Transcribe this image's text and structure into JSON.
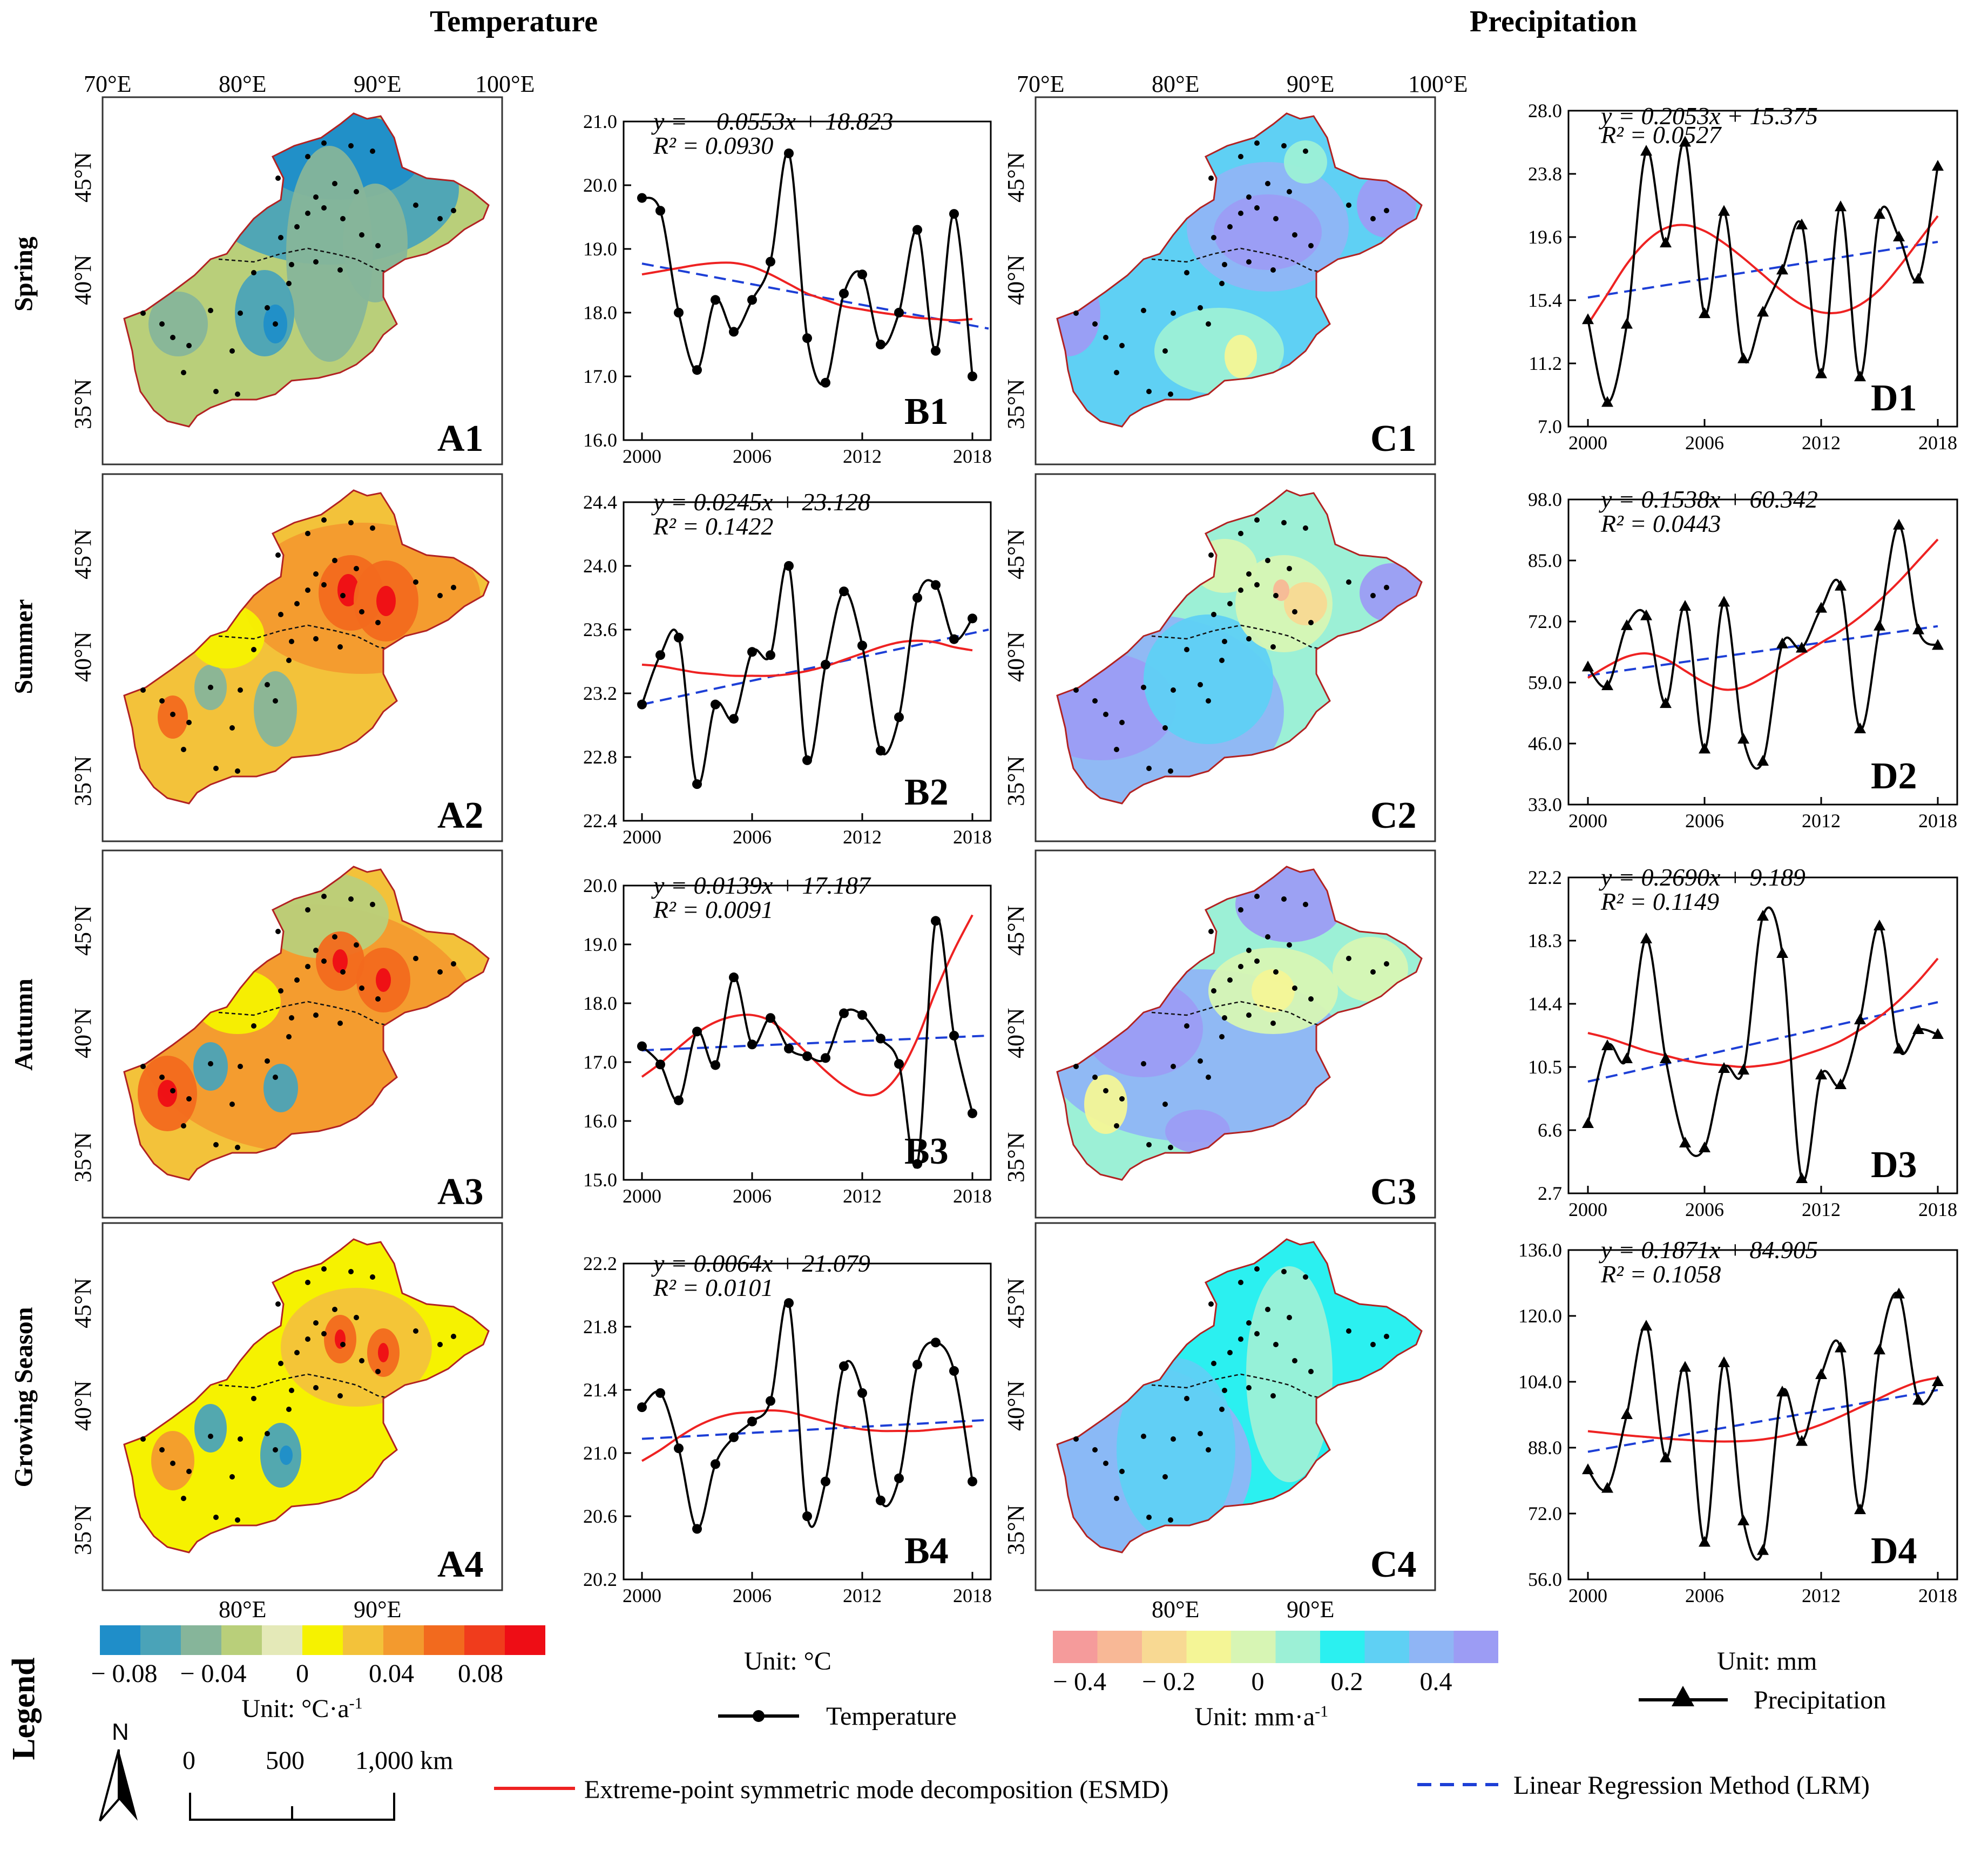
{
  "headings": {
    "temperature": "Temperature",
    "precipitation": "Precipitation",
    "legend": "Legend"
  },
  "rows": [
    "Spring",
    "Summer",
    "Autumn",
    "Growing Season"
  ],
  "map_axes": {
    "top_lon_labels": [
      "70°E",
      "80°E",
      "90°E",
      "100°E"
    ],
    "lat_labels": [
      "45°N",
      "40°N",
      "35°N"
    ],
    "bottom_lon_labels": [
      "80°E",
      "90°E"
    ]
  },
  "map_labels": {
    "temperature": [
      "A1",
      "A2",
      "A3",
      "A4"
    ],
    "precipitation": [
      "C1",
      "C2",
      "C3",
      "C4"
    ]
  },
  "colors": {
    "temp_scale": [
      "#1f8ec9",
      "#4aa3b8",
      "#86b59a",
      "#b9cf7a",
      "#e4e9b8",
      "#f6f200",
      "#f3c23a",
      "#f39a2e",
      "#f26a1e",
      "#f03c1c",
      "#ee0d15"
    ],
    "precip_scale": [
      "#f59b9b",
      "#f8b896",
      "#f8d993",
      "#f4f596",
      "#d7f5b4",
      "#9cf0d6",
      "#2bf0f0",
      "#5fd0f4",
      "#8fb5f5",
      "#9c9cf4"
    ],
    "temp_line": "#000000",
    "esmd": "#ee2222",
    "lrm": "#1d3fd6",
    "border": "#b22222"
  },
  "legend": {
    "temp_scale_labels": [
      "− 0.08",
      "− 0.04",
      "0",
      "0.04",
      "0.08"
    ],
    "temp_scale_unit": "Unit: °C·a",
    "temp_scale_unit_sup": "-1",
    "precip_scale_labels": [
      "− 0.4",
      "− 0.2",
      "0",
      "0.2",
      "0.4"
    ],
    "precip_scale_unit": "Unit: mm·a",
    "precip_scale_unit_sup": "-1",
    "temp_chart_unit": "Unit: °C",
    "precip_chart_unit": "Unit: mm",
    "temperature_series": "Temperature",
    "precipitation_series": "Precipitation",
    "esmd": "Extreme-point symmetric mode decomposition (ESMD)",
    "lrm": "Linear Regression Method (LRM)",
    "north": "N",
    "scale_bar": [
      "0",
      "500",
      "1,000 km"
    ]
  },
  "chart_data": [
    {
      "id": "B1",
      "type": "line",
      "title": "Spring temperature",
      "equation": "y = − 0.0553x + 18.823",
      "r2": "R² = 0.0930",
      "x": [
        2000,
        2001,
        2002,
        2003,
        2004,
        2005,
        2006,
        2007,
        2008,
        2009,
        2010,
        2011,
        2012,
        2013,
        2014,
        2015,
        2016,
        2017,
        2018
      ],
      "values": [
        19.8,
        19.6,
        18.0,
        17.1,
        18.2,
        17.7,
        18.2,
        18.8,
        20.5,
        17.6,
        16.9,
        18.3,
        18.6,
        17.5,
        18.0,
        19.3,
        17.4,
        19.55,
        17.0
      ],
      "ylim": [
        16.0,
        21.0
      ],
      "yticks": [
        "16.0",
        "17.0",
        "18.0",
        "19.0",
        "20.0",
        "21.0"
      ],
      "xticks": [
        "2000",
        "2006",
        "2012",
        "2018"
      ],
      "esmd": [
        18.6,
        18.65,
        18.7,
        18.75,
        18.78,
        18.78,
        18.72,
        18.6,
        18.45,
        18.3,
        18.2,
        18.1,
        18.05,
        18.0,
        17.96,
        17.92,
        17.9,
        17.88,
        17.9
      ],
      "lrm": [
        18.77,
        17.75
      ],
      "marker": "circle"
    },
    {
      "id": "B2",
      "type": "line",
      "title": "Summer temperature",
      "equation": "y = 0.0245x + 23.128",
      "r2": "R² = 0.1422",
      "x": [
        2000,
        2001,
        2002,
        2003,
        2004,
        2005,
        2006,
        2007,
        2008,
        2009,
        2010,
        2011,
        2012,
        2013,
        2014,
        2015,
        2016,
        2017,
        2018
      ],
      "values": [
        23.13,
        23.44,
        23.55,
        22.63,
        23.13,
        23.04,
        23.46,
        23.44,
        24.0,
        22.78,
        23.38,
        23.84,
        23.5,
        22.84,
        23.05,
        23.8,
        23.88,
        23.54,
        23.67
      ],
      "ylim": [
        22.4,
        24.4
      ],
      "yticks": [
        "22.4",
        "22.8",
        "23.2",
        "23.6",
        "24.0",
        "24.4"
      ],
      "xticks": [
        "2000",
        "2006",
        "2012",
        "2018"
      ],
      "esmd": [
        23.38,
        23.37,
        23.35,
        23.33,
        23.32,
        23.31,
        23.31,
        23.31,
        23.32,
        23.34,
        23.37,
        23.41,
        23.45,
        23.49,
        23.52,
        23.53,
        23.52,
        23.49,
        23.47
      ],
      "lrm": [
        23.13,
        23.6
      ],
      "marker": "circle"
    },
    {
      "id": "B3",
      "type": "line",
      "title": "Autumn temperature",
      "equation": "y = 0.0139x + 17.187",
      "r2": "R² = 0.0091",
      "x": [
        2000,
        2001,
        2002,
        2003,
        2004,
        2005,
        2006,
        2007,
        2008,
        2009,
        2010,
        2011,
        2012,
        2013,
        2014,
        2015,
        2016,
        2017,
        2018
      ],
      "values": [
        17.27,
        16.96,
        16.35,
        17.52,
        16.95,
        18.44,
        17.3,
        17.75,
        17.23,
        17.1,
        17.07,
        17.83,
        17.8,
        17.4,
        16.97,
        15.27,
        19.4,
        17.45,
        16.13
      ],
      "ylim": [
        15.0,
        20.0
      ],
      "yticks": [
        "15.0",
        "16.0",
        "17.0",
        "18.0",
        "19.0",
        "20.0"
      ],
      "xticks": [
        "2000",
        "2006",
        "2012",
        "2018"
      ],
      "esmd": [
        16.75,
        16.98,
        17.25,
        17.5,
        17.68,
        17.78,
        17.8,
        17.7,
        17.45,
        17.15,
        16.85,
        16.6,
        16.45,
        16.48,
        16.8,
        17.4,
        18.2,
        18.9,
        19.5
      ],
      "lrm": [
        17.2,
        17.45
      ],
      "marker": "circle"
    },
    {
      "id": "B4",
      "type": "line",
      "title": "Growing season temperature",
      "equation": "y = 0.0064x + 21.079",
      "r2": "R² = 0.0101",
      "x": [
        2000,
        2001,
        2002,
        2003,
        2004,
        2005,
        2006,
        2007,
        2008,
        2009,
        2010,
        2011,
        2012,
        2013,
        2014,
        2015,
        2016,
        2017,
        2018
      ],
      "values": [
        21.29,
        21.38,
        21.03,
        20.52,
        20.93,
        21.1,
        21.2,
        21.33,
        21.95,
        20.6,
        20.82,
        21.55,
        21.38,
        20.7,
        20.84,
        21.56,
        21.7,
        21.52,
        20.82
      ],
      "ylim": [
        20.2,
        22.2
      ],
      "yticks": [
        "20.2",
        "20.6",
        "21.0",
        "21.4",
        "21.8",
        "22.2"
      ],
      "xticks": [
        "2000",
        "2006",
        "2012",
        "2018"
      ],
      "esmd": [
        20.95,
        21.02,
        21.1,
        21.17,
        21.22,
        21.25,
        21.26,
        21.27,
        21.26,
        21.23,
        21.2,
        21.17,
        21.15,
        21.14,
        21.14,
        21.14,
        21.15,
        21.16,
        21.17
      ],
      "lrm": [
        21.09,
        21.21
      ],
      "marker": "circle"
    },
    {
      "id": "D1",
      "type": "line",
      "title": "Spring precipitation",
      "equation": "y = 0.2053x + 15.375",
      "r2": "R² = 0.0527",
      "x": [
        2000,
        2001,
        2002,
        2003,
        2004,
        2005,
        2006,
        2007,
        2008,
        2009,
        2010,
        2011,
        2012,
        2013,
        2014,
        2015,
        2016,
        2017,
        2018
      ],
      "values": [
        14.1,
        8.6,
        13.8,
        25.3,
        19.2,
        25.9,
        14.5,
        21.3,
        11.5,
        14.6,
        17.4,
        20.4,
        10.5,
        21.6,
        10.3,
        21.1,
        19.6,
        16.8,
        24.3
      ],
      "ylim": [
        7.0,
        28.0
      ],
      "yticks": [
        "7.0",
        "11.2",
        "15.4",
        "19.6",
        "23.8",
        "28.0"
      ],
      "xticks": [
        "2000",
        "2006",
        "2012",
        "2018"
      ],
      "esmd": [
        13.8,
        15.8,
        17.8,
        19.3,
        20.2,
        20.4,
        20.0,
        19.2,
        18.2,
        17.1,
        16.0,
        15.1,
        14.6,
        14.6,
        15.1,
        16.1,
        17.6,
        19.3,
        21.0
      ],
      "lrm": [
        15.58,
        19.28
      ],
      "marker": "triangle"
    },
    {
      "id": "D2",
      "type": "line",
      "title": "Summer precipitation",
      "equation": "y = 0.1538x + 60.342",
      "r2": "R² = 0.0443",
      "x": [
        2000,
        2001,
        2002,
        2003,
        2004,
        2005,
        2006,
        2007,
        2008,
        2009,
        2010,
        2011,
        2012,
        2013,
        2014,
        2015,
        2016,
        2017,
        2018
      ],
      "values": [
        62.3,
        58.3,
        71.1,
        73.2,
        54.5,
        75.2,
        44.8,
        76.1,
        46.9,
        42.2,
        67.2,
        66.3,
        74.8,
        79.5,
        49.1,
        71.0,
        92.5,
        70.2,
        66.9
      ],
      "ylim": [
        33.0,
        98.0
      ],
      "yticks": [
        "33.0",
        "46.0",
        "59.0",
        "72.0",
        "85.0",
        "98.0"
      ],
      "xticks": [
        "2000",
        "2006",
        "2012",
        "2018"
      ],
      "esmd": [
        60.0,
        62.5,
        64.5,
        65.2,
        64.0,
        61.5,
        59.0,
        57.5,
        58.0,
        60.0,
        62.5,
        65.0,
        67.5,
        70.0,
        73.0,
        76.5,
        80.5,
        85.0,
        89.5
      ],
      "lrm": [
        60.5,
        71.0
      ],
      "marker": "triangle"
    },
    {
      "id": "D3",
      "type": "line",
      "title": "Autumn precipitation",
      "equation": "y = 0.2690x + 9.189",
      "r2": "R² = 0.1149",
      "x": [
        2000,
        2001,
        2002,
        2003,
        2004,
        2005,
        2006,
        2007,
        2008,
        2009,
        2010,
        2011,
        2012,
        2013,
        2014,
        2015,
        2016,
        2017,
        2018
      ],
      "values": [
        7.0,
        11.8,
        11.0,
        18.4,
        11.0,
        5.8,
        5.5,
        10.4,
        10.3,
        19.8,
        17.5,
        3.6,
        10.0,
        9.4,
        13.4,
        19.2,
        11.6,
        12.8,
        12.5
      ],
      "ylim": [
        2.7,
        22.2
      ],
      "yticks": [
        "2.7",
        "6.6",
        "10.5",
        "14.4",
        "18.3",
        "22.2"
      ],
      "xticks": [
        "2000",
        "2006",
        "2012",
        "2018"
      ],
      "esmd": [
        12.6,
        12.3,
        11.9,
        11.5,
        11.2,
        10.9,
        10.7,
        10.6,
        10.5,
        10.6,
        10.8,
        11.2,
        11.6,
        12.1,
        12.8,
        13.6,
        14.6,
        15.8,
        17.2
      ],
      "lrm": [
        9.6,
        14.5
      ],
      "marker": "triangle"
    },
    {
      "id": "D4",
      "type": "line",
      "title": "Growing season precipitation",
      "equation": "y = 0.1871x + 84.905",
      "r2": "R² = 0.1058",
      "x": [
        2000,
        2001,
        2002,
        2003,
        2004,
        2005,
        2006,
        2007,
        2008,
        2009,
        2010,
        2011,
        2012,
        2013,
        2014,
        2015,
        2016,
        2017,
        2018
      ],
      "values": [
        82.6,
        78.1,
        96.0,
        117.5,
        85.5,
        107.5,
        65.0,
        108.6,
        70.2,
        63.0,
        101.5,
        89.5,
        105.7,
        112.2,
        72.9,
        111.7,
        125.3,
        99.5,
        104.0
      ],
      "ylim": [
        56.0,
        136.0
      ],
      "yticks": [
        "56.0",
        "72.0",
        "88.0",
        "104.0",
        "120.0",
        "136.0"
      ],
      "xticks": [
        "2000",
        "2006",
        "2012",
        "2018"
      ],
      "esmd": [
        92.0,
        91.5,
        91.0,
        90.6,
        90.2,
        89.9,
        89.6,
        89.5,
        89.6,
        90.0,
        90.8,
        92.0,
        93.6,
        95.6,
        97.8,
        100.0,
        102.2,
        104.0,
        105.0
      ],
      "lrm": [
        87.0,
        102.0
      ],
      "marker": "triangle"
    }
  ]
}
